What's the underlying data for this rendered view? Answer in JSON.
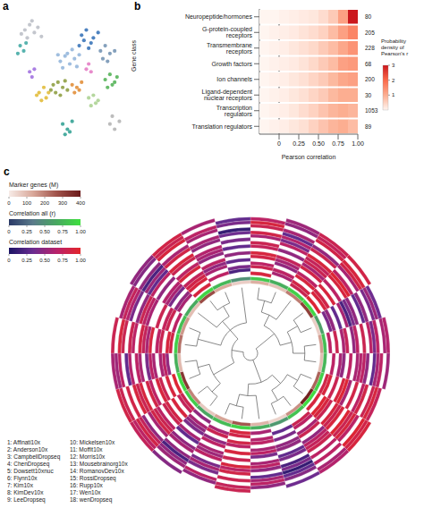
{
  "chart_data": [
    {
      "panel": "a",
      "type": "scatter",
      "xlim": [
        0,
        10
      ],
      "ylim": [
        0,
        10
      ],
      "tick_labels": false,
      "marker": "circle",
      "series": [
        {
          "color": "#b8bcc4",
          "x": [
            1.2,
            1.6,
            2.0,
            1.4,
            1.8,
            2.3,
            0.9,
            2.6
          ],
          "y": [
            8.8,
            9.2,
            8.6,
            8.2,
            9.5,
            9.0,
            8.5,
            8.3
          ]
        },
        {
          "color": "#3aa6a0",
          "x": [
            0.8,
            1.1,
            0.6,
            1.3
          ],
          "y": [
            7.6,
            7.2,
            7.0,
            7.8
          ]
        },
        {
          "color": "#8fb3d9",
          "x": [
            4.2,
            4.6,
            5.0,
            5.4,
            4.8,
            5.2,
            4.4,
            5.8,
            5.6,
            4.0
          ],
          "y": [
            6.4,
            6.8,
            6.2,
            6.6,
            7.0,
            7.3,
            5.9,
            6.9,
            6.0,
            6.9
          ]
        },
        {
          "color": "#2f6db5",
          "x": [
            5.8,
            6.2,
            6.6,
            6.0,
            6.4,
            7.0,
            6.8,
            7.4
          ],
          "y": [
            7.6,
            8.0,
            7.4,
            8.4,
            8.8,
            8.2,
            7.8,
            8.6
          ]
        },
        {
          "color": "#6f8fb0",
          "x": [
            7.6,
            8.0,
            8.4,
            7.8,
            8.2,
            8.8
          ],
          "y": [
            7.2,
            7.6,
            7.0,
            6.6,
            6.4,
            7.2
          ]
        },
        {
          "color": "#8a9a3a",
          "x": [
            3.6,
            4.0,
            4.4,
            3.8,
            4.2,
            4.8,
            3.4,
            4.6
          ],
          "y": [
            4.6,
            4.8,
            4.4,
            4.0,
            3.8,
            4.2,
            4.2,
            4.9
          ]
        },
        {
          "color": "#e0b830",
          "x": [
            2.4,
            2.8,
            3.0,
            2.6,
            3.2,
            2.2
          ],
          "y": [
            4.0,
            4.4,
            3.6,
            3.4,
            4.0,
            3.8
          ]
        },
        {
          "color": "#e08a30",
          "x": [
            5.2,
            5.6,
            6.0,
            5.4,
            5.8
          ],
          "y": [
            4.6,
            4.4,
            4.8,
            4.0,
            4.2
          ]
        },
        {
          "color": "#4caf50",
          "x": [
            8.0,
            8.4,
            8.8,
            8.2,
            8.6,
            9.0
          ],
          "y": [
            5.0,
            5.4,
            4.8,
            4.4,
            4.6,
            5.2
          ]
        },
        {
          "color": "#a8d08d",
          "x": [
            6.6,
            7.0,
            7.4,
            6.8,
            7.2
          ],
          "y": [
            3.6,
            3.8,
            3.4,
            3.0,
            3.2
          ]
        },
        {
          "color": "#2a9d8f",
          "x": [
            4.4,
            4.8,
            5.2,
            4.6,
            5.0
          ],
          "y": [
            1.6,
            1.2,
            1.8,
            0.8,
            1.0
          ]
        },
        {
          "color": "#9c6ade",
          "x": [
            1.6,
            2.0,
            1.8
          ],
          "y": [
            5.6,
            5.8,
            5.2
          ]
        },
        {
          "color": "#b0b0b0",
          "x": [
            8.4,
            8.8,
            9.2,
            8.6
          ],
          "y": [
            1.6,
            1.2,
            1.8,
            2.2
          ]
        },
        {
          "color": "#e377c2",
          "x": [
            6.4,
            6.8,
            6.6
          ],
          "y": [
            5.8,
            5.6,
            6.2
          ]
        }
      ]
    },
    {
      "panel": "b",
      "type": "heatmap",
      "x_label": "Pearson correlation",
      "y_label": "Gene class",
      "categories": [
        "Neuropeptide/hormones",
        "G-protein-coupled receptors",
        "Transmembrane receptors",
        "Growth factors",
        "Ion channels",
        "Ligand-dependent nuclear receptors",
        "Transcription regulators",
        "Translation regulators"
      ],
      "counts": [
        80,
        205,
        228,
        68,
        200,
        30,
        1053,
        89
      ],
      "bins": [
        -0.25,
        -0.125,
        0,
        0.125,
        0.25,
        0.375,
        0.5,
        0.625,
        0.75,
        0.875,
        1
      ],
      "cells": [
        [
          0,
          0,
          0.05,
          0.1,
          0.15,
          0.2,
          0.35,
          0.6,
          1.2,
          3.0
        ],
        [
          0,
          0.05,
          0.1,
          0.15,
          0.25,
          0.35,
          0.5,
          0.8,
          1.2,
          1.6
        ],
        [
          0,
          0.05,
          0.1,
          0.2,
          0.3,
          0.4,
          0.6,
          0.8,
          1.1,
          1.4
        ],
        [
          0,
          0.05,
          0.1,
          0.15,
          0.25,
          0.4,
          0.6,
          0.8,
          1.2,
          1.3
        ],
        [
          0,
          0.05,
          0.1,
          0.2,
          0.3,
          0.45,
          0.6,
          0.85,
          1.1,
          1.2
        ],
        [
          0,
          0.05,
          0.1,
          0.2,
          0.3,
          0.45,
          0.6,
          0.85,
          1.0,
          1.0
        ],
        [
          0,
          0.05,
          0.1,
          0.2,
          0.35,
          0.5,
          0.7,
          0.9,
          1.0,
          0.9
        ],
        [
          0,
          0.05,
          0.1,
          0.2,
          0.3,
          0.5,
          0.7,
          0.9,
          1.0,
          0.8
        ]
      ],
      "xlim": [
        -0.25,
        1
      ],
      "xticks": [
        0,
        0.25,
        {
          "value": 0.5,
          "label": "0.50"
        },
        0.75,
        {
          "value": 1,
          "label": "1.00"
        }
      ],
      "reference_line": {
        "x": 0,
        "line_style": "dashed"
      },
      "colorbar": {
        "title": "Probability density of Pearson's r",
        "range": [
          0,
          3
        ],
        "ticks": [
          1,
          2,
          3
        ],
        "colors": [
          "#fff5f0",
          "#fcae91",
          "#fb6a4a",
          "#cb181d"
        ]
      }
    },
    {
      "panel": "c",
      "type": "circular_heatmap",
      "tree": [
        [
          [
            [
              0,
              1
            ],
            2
          ],
          [
            [
              3,
              4
            ],
            [
              5,
              6
            ]
          ]
        ],
        [
          [
            [
              7,
              8
            ],
            [
              9,
              10
            ]
          ],
          [
            11,
            [
              12,
              13
            ]
          ]
        ],
        [
          [
            [
              14,
              15
            ],
            [
              16,
              17
            ]
          ],
          [
            [
              18,
              19
            ],
            [
              20,
              [
                21,
                22
              ]
            ],
            23
          ]
        ]
      ],
      "marker_genes": [
        120,
        80,
        200,
        310,
        60,
        150,
        90,
        240,
        380,
        170,
        50,
        110,
        260,
        140,
        70,
        190,
        330,
        100,
        220,
        160,
        90,
        280,
        130,
        60
      ],
      "correlation_all": [
        0.85,
        0.7,
        0.9,
        0.95,
        0.6,
        0.8,
        0.75,
        0.9,
        0.98,
        0.82,
        0.55,
        0.7,
        0.92,
        0.78,
        0.65,
        0.88,
        0.96,
        0.72,
        0.9,
        0.8,
        0.68,
        0.94,
        0.76,
        0.5
      ],
      "correlation_dataset": [
        [
          0.9,
          null,
          0.8,
          0.95,
          null,
          0.7,
          null,
          0.85,
          0.9,
          null,
          null,
          0.6,
          0.9,
          null,
          0.5,
          0.8,
          0.95,
          null,
          0.85,
          0.7,
          null,
          0.9,
          null,
          null
        ],
        [
          null,
          0.6,
          0.85,
          null,
          0.4,
          null,
          0.7,
          0.9,
          null,
          0.8,
          0.3,
          null,
          0.85,
          0.6,
          null,
          0.75,
          null,
          0.5,
          0.9,
          null,
          0.6,
          null,
          0.7,
          0.2
        ],
        [
          0.8,
          0.7,
          null,
          0.9,
          0.5,
          0.8,
          null,
          null,
          0.95,
          0.7,
          null,
          0.65,
          null,
          0.8,
          0.6,
          null,
          0.9,
          0.7,
          null,
          0.8,
          0.5,
          0.9,
          null,
          0.4
        ],
        [
          0.7,
          null,
          0.9,
          0.85,
          null,
          null,
          0.6,
          0.8,
          0.9,
          null,
          0.4,
          0.7,
          0.85,
          null,
          0.5,
          0.9,
          null,
          0.6,
          0.8,
          0.75,
          null,
          0.85,
          0.6,
          null
        ],
        [
          null,
          0.5,
          0.7,
          null,
          0.3,
          0.6,
          0.5,
          null,
          0.8,
          0.6,
          null,
          null,
          0.7,
          0.5,
          0.4,
          null,
          0.8,
          null,
          0.7,
          null,
          0.4,
          0.75,
          0.5,
          0.3
        ],
        [
          0.85,
          0.6,
          null,
          0.9,
          null,
          0.75,
          null,
          0.9,
          null,
          0.8,
          0.5,
          0.6,
          null,
          0.7,
          null,
          0.85,
          0.9,
          0.6,
          null,
          0.8,
          0.6,
          null,
          0.7,
          null
        ],
        [
          0.9,
          0.75,
          0.85,
          null,
          0.6,
          null,
          0.7,
          0.95,
          0.9,
          null,
          0.5,
          0.7,
          0.9,
          null,
          0.6,
          0.8,
          null,
          0.7,
          0.9,
          null,
          0.65,
          0.9,
          null,
          0.5
        ],
        [
          null,
          null,
          0.6,
          0.7,
          0.2,
          0.5,
          null,
          0.6,
          0.8,
          0.5,
          null,
          0.4,
          null,
          0.6,
          0.3,
          null,
          0.7,
          0.4,
          0.6,
          null,
          null,
          0.7,
          0.5,
          null
        ],
        [
          0.75,
          0.5,
          0.8,
          null,
          0.4,
          0.7,
          0.6,
          null,
          0.9,
          0.7,
          0.3,
          null,
          0.8,
          0.55,
          null,
          0.7,
          0.85,
          null,
          0.75,
          0.6,
          0.5,
          null,
          0.6,
          0.3
        ],
        [
          0.8,
          null,
          0.75,
          0.9,
          0.5,
          null,
          0.65,
          0.85,
          null,
          0.75,
          0.4,
          0.6,
          null,
          0.7,
          0.5,
          0.8,
          null,
          0.6,
          0.85,
          0.7,
          null,
          0.8,
          0.65,
          null
        ],
        [
          null,
          0.7,
          0.9,
          0.95,
          null,
          0.8,
          0.7,
          null,
          0.95,
          0.8,
          null,
          0.7,
          0.9,
          null,
          0.6,
          0.85,
          0.9,
          0.7,
          null,
          0.8,
          0.7,
          0.9,
          null,
          0.4
        ],
        [
          0.6,
          0.4,
          null,
          0.7,
          0.3,
          null,
          0.5,
          0.7,
          0.8,
          null,
          0.2,
          0.5,
          0.7,
          0.4,
          null,
          0.6,
          0.8,
          null,
          0.7,
          0.5,
          0.3,
          null,
          0.5,
          null
        ],
        [
          0.85,
          0.65,
          0.8,
          null,
          0.5,
          0.7,
          null,
          0.85,
          0.9,
          0.7,
          0.4,
          null,
          0.85,
          0.6,
          0.5,
          null,
          0.9,
          0.65,
          0.8,
          null,
          0.55,
          0.85,
          0.6,
          0.35
        ],
        [
          null,
          0.3,
          0.5,
          0.6,
          null,
          0.4,
          0.3,
          null,
          0.7,
          null,
          0.1,
          0.3,
          null,
          0.4,
          0.2,
          0.5,
          null,
          0.3,
          null,
          0.4,
          0.2,
          0.6,
          null,
          0.1
        ],
        [
          0.8,
          0.6,
          null,
          0.85,
          0.4,
          0.7,
          0.6,
          0.8,
          null,
          0.7,
          0.3,
          0.6,
          0.8,
          null,
          0.5,
          0.75,
          0.85,
          null,
          0.8,
          0.65,
          0.5,
          null,
          0.6,
          null
        ],
        [
          0.9,
          null,
          0.85,
          0.9,
          0.55,
          null,
          0.7,
          0.9,
          0.95,
          null,
          0.45,
          0.7,
          null,
          0.7,
          0.55,
          0.85,
          null,
          0.7,
          0.9,
          0.75,
          null,
          0.9,
          0.7,
          0.4
        ],
        [
          0.7,
          0.5,
          0.75,
          null,
          0.35,
          0.6,
          null,
          0.75,
          0.85,
          0.6,
          null,
          0.5,
          0.75,
          0.5,
          null,
          0.7,
          0.8,
          0.55,
          null,
          0.6,
          0.45,
          0.8,
          null,
          0.3
        ],
        [
          null,
          0.55,
          0.8,
          0.85,
          null,
          0.65,
          0.55,
          null,
          0.9,
          0.65,
          0.35,
          null,
          0.8,
          null,
          0.45,
          0.75,
          0.85,
          0.6,
          0.8,
          null,
          0.5,
          0.85,
          0.6,
          null
        ]
      ],
      "colorbars": [
        {
          "title": "Marker genes (M)",
          "range": [
            0,
            400
          ],
          "ticks": [
            0,
            100,
            200,
            300,
            400
          ],
          "colors": [
            "#f7ece8",
            "#d9a89a",
            "#a0524a",
            "#6b1a1a"
          ]
        },
        {
          "title": "Correlation all (r)",
          "range": [
            0,
            1
          ],
          "ticks": [
            0,
            0.25,
            {
              "value": 0.5,
              "label": "0.50"
            },
            0.75,
            {
              "value": 1,
              "label": "1.00"
            }
          ],
          "colors": [
            "#2b3a67",
            "#5a7a8a",
            "#48a860",
            "#3fe03f"
          ]
        },
        {
          "title": "Correlation dataset",
          "range": [
            0,
            1
          ],
          "ticks": [
            0,
            0.25,
            {
              "value": 0.5,
              "label": "0.50"
            },
            0.75,
            {
              "value": 1,
              "label": "1.00"
            }
          ],
          "colors": [
            "#1b1464",
            "#6a2c91",
            "#b8226a",
            "#e3262b"
          ]
        }
      ],
      "datasets": [
        "1: Affinati10x",
        "2: Anderson10x",
        "3: CampbellDropseq",
        "4: ChenDropseq",
        "5: Dowsett10xnuc",
        "6: Flynn10x",
        "7: Kim10x",
        "8: KimDev10x",
        "9: LeeDropseq",
        "10: Mickelsen10x",
        "11: Moffit10x",
        "12: Morris10x",
        "13: Mousebrainorg10x",
        "14: RomanovDev10x",
        "15: RossiDropseq",
        "16: Rupp10x",
        "17: Wen10x",
        "18: wenDropseq"
      ]
    }
  ]
}
